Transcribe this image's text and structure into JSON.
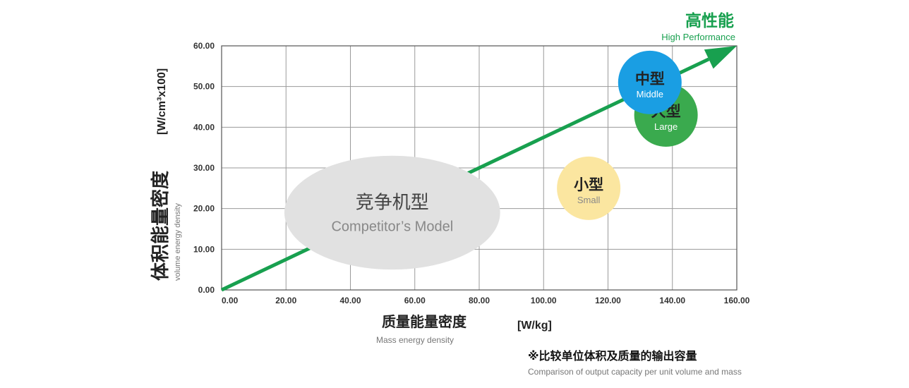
{
  "chart_data": {
    "type": "scatter",
    "title": "高性能",
    "subtitle": "High Performance",
    "xlabel": "质量能量密度",
    "xlabel_en": "Mass energy density",
    "xunit": "[W/kg]",
    "ylabel": "体积能量密度",
    "ylabel_en": "volume energy density",
    "yunit": "[W/cm³x100]",
    "xlim": [
      0,
      160
    ],
    "ylim": [
      0,
      60
    ],
    "grid": true,
    "xticks": [
      "0.00",
      "20.00",
      "40.00",
      "60.00",
      "80.00",
      "100.00",
      "120.00",
      "140.00",
      "160.00"
    ],
    "yticks": [
      "0.00",
      "10.00",
      "20.00",
      "30.00",
      "40.00",
      "50.00",
      "60.00"
    ],
    "arrow": {
      "from": [
        0,
        0
      ],
      "to": [
        160,
        60
      ]
    },
    "competitor": {
      "label_cn": "竞争机型",
      "label_en": "Competitor’s Model",
      "center": [
        53,
        19
      ],
      "width": 67,
      "height": 28
    },
    "points": [
      {
        "label_cn": "中型",
        "label_en": "Middle",
        "x": 133,
        "y": 51
      },
      {
        "label_cn": "大型",
        "label_en": "Large",
        "x": 138,
        "y": 43
      },
      {
        "label_cn": "小型",
        "label_en": "Small",
        "x": 114,
        "y": 25
      }
    ],
    "colors": {
      "arrow": "#18a04f",
      "competitor": "#e1e1e1",
      "Middle": "#1a9ee3",
      "Large": "#3aaa4e",
      "Small": "#fbe6a0",
      "grid": "#9a9a9a"
    }
  },
  "footnote": {
    "cn": "※比较单位体积及质量的输出容量",
    "en": "Comparison of output capacity per unit volume and mass"
  }
}
